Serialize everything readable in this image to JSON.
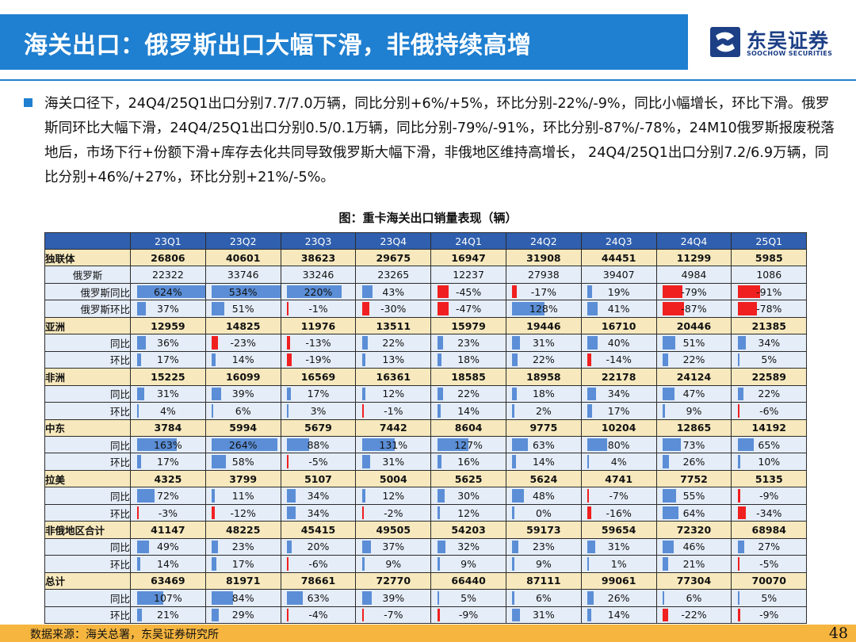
{
  "header": {
    "title": "海关出口：俄罗斯出口大幅下滑，非俄持续高增",
    "logo_cn": "东吴证券",
    "logo_en": "SOOCHOW SECURITIES",
    "accent_color": "#1f7fd0"
  },
  "bullet": {
    "text": "海关口径下，24Q4/25Q1出口分别7.7/7.0万辆，同比分别+6%/+5%，环比分别-22%/-9%，同比小幅增长，环比下滑。俄罗斯同环比大幅下滑，24Q4/25Q1出口分别0.5/0.1万辆，同比分别-79%/-91%，环比分别-87%/-78%，24M10俄罗斯报废税落地后，市场下行+份额下滑+库存去化共同导致俄罗斯大幅下滑，非俄地区维持高增长， 24Q4/25Q1出口分别7.2/6.9万辆，同比分别+46%/+27%，环比分别+21%/-5%。"
  },
  "caption": "图：重卡海关出口销量表现（辆）",
  "table": {
    "columns": [
      "23Q1",
      "23Q2",
      "23Q3",
      "23Q4",
      "24Q1",
      "24Q2",
      "24Q3",
      "24Q4",
      "25Q1"
    ],
    "rows": [
      {
        "label": "独联体",
        "kind": "main",
        "values": [
          "26806",
          "40601",
          "38623",
          "29675",
          "16947",
          "31908",
          "44451",
          "11299",
          "5985"
        ]
      },
      {
        "label": "俄罗斯",
        "kind": "sub",
        "values": [
          "22322",
          "33746",
          "33246",
          "23265",
          "12237",
          "27938",
          "39407",
          "4984",
          "1086"
        ]
      },
      {
        "label": "俄罗斯同比",
        "kind": "pct",
        "values": [
          "624%",
          "534%",
          "220%",
          "43%",
          "-45%",
          "-17%",
          "19%",
          "-79%",
          "-91%"
        ]
      },
      {
        "label": "俄罗斯环比",
        "kind": "pct",
        "values": [
          "37%",
          "51%",
          "-1%",
          "-30%",
          "-47%",
          "128%",
          "41%",
          "-87%",
          "-78%"
        ]
      },
      {
        "label": "亚洲",
        "kind": "main",
        "values": [
          "12959",
          "14825",
          "11976",
          "13511",
          "15979",
          "19446",
          "16710",
          "20446",
          "21385"
        ]
      },
      {
        "label": "同比",
        "kind": "pct",
        "values": [
          "36%",
          "-23%",
          "-13%",
          "22%",
          "23%",
          "31%",
          "40%",
          "51%",
          "34%"
        ]
      },
      {
        "label": "环比",
        "kind": "pct",
        "values": [
          "17%",
          "14%",
          "-19%",
          "13%",
          "18%",
          "22%",
          "-14%",
          "22%",
          "5%"
        ]
      },
      {
        "label": "非洲",
        "kind": "main",
        "values": [
          "15225",
          "16099",
          "16569",
          "16361",
          "18585",
          "18958",
          "22178",
          "24124",
          "22589"
        ]
      },
      {
        "label": "同比",
        "kind": "pct",
        "values": [
          "31%",
          "39%",
          "17%",
          "12%",
          "22%",
          "18%",
          "34%",
          "47%",
          "22%"
        ]
      },
      {
        "label": "环比",
        "kind": "pct",
        "values": [
          "4%",
          "6%",
          "3%",
          "-1%",
          "14%",
          "2%",
          "17%",
          "9%",
          "-6%"
        ]
      },
      {
        "label": "中东",
        "kind": "main",
        "values": [
          "3784",
          "5994",
          "5679",
          "7442",
          "8604",
          "9775",
          "10204",
          "12865",
          "14192"
        ]
      },
      {
        "label": "同比",
        "kind": "pct",
        "values": [
          "163%",
          "264%",
          "88%",
          "131%",
          "127%",
          "63%",
          "80%",
          "73%",
          "65%"
        ]
      },
      {
        "label": "环比",
        "kind": "pct",
        "values": [
          "17%",
          "58%",
          "-5%",
          "31%",
          "16%",
          "14%",
          "4%",
          "26%",
          "10%"
        ]
      },
      {
        "label": "拉美",
        "kind": "main",
        "values": [
          "4325",
          "3799",
          "5107",
          "5004",
          "5625",
          "5624",
          "4741",
          "7752",
          "5135"
        ]
      },
      {
        "label": "同比",
        "kind": "pct",
        "values": [
          "72%",
          "11%",
          "34%",
          "12%",
          "30%",
          "48%",
          "-7%",
          "55%",
          "-9%"
        ]
      },
      {
        "label": "环比",
        "kind": "pct",
        "values": [
          "-3%",
          "-12%",
          "34%",
          "-2%",
          "12%",
          "0%",
          "-16%",
          "64%",
          "-34%"
        ]
      },
      {
        "label": "非俄地区合计",
        "kind": "main",
        "values": [
          "41147",
          "48225",
          "45415",
          "49505",
          "54203",
          "59173",
          "59654",
          "72320",
          "68984"
        ]
      },
      {
        "label": "同比",
        "kind": "pct",
        "values": [
          "49%",
          "23%",
          "20%",
          "37%",
          "32%",
          "23%",
          "31%",
          "46%",
          "27%"
        ]
      },
      {
        "label": "环比",
        "kind": "pct",
        "values": [
          "14%",
          "17%",
          "-6%",
          "9%",
          "9%",
          "9%",
          "1%",
          "21%",
          "-5%"
        ]
      },
      {
        "label": "总计",
        "kind": "main",
        "values": [
          "63469",
          "81971",
          "78661",
          "72770",
          "66440",
          "87111",
          "99061",
          "77304",
          "70070"
        ]
      },
      {
        "label": "同比",
        "kind": "pct",
        "values": [
          "107%",
          "84%",
          "63%",
          "39%",
          "5%",
          "6%",
          "26%",
          "6%",
          "5%"
        ]
      },
      {
        "label": "环比",
        "kind": "pct",
        "values": [
          "21%",
          "29%",
          "-4%",
          "-7%",
          "-9%",
          "31%",
          "14%",
          "-22%",
          "-9%"
        ]
      }
    ]
  },
  "footer": {
    "source": "数据来源：海关总署，东吴证券研究所",
    "page_number": "48"
  },
  "colors": {
    "positive_bar": "#5b8ed6",
    "negative_bar": "#f02020",
    "footer_bg": "#f6b53f",
    "header_row_bg": "#2f5fae"
  }
}
